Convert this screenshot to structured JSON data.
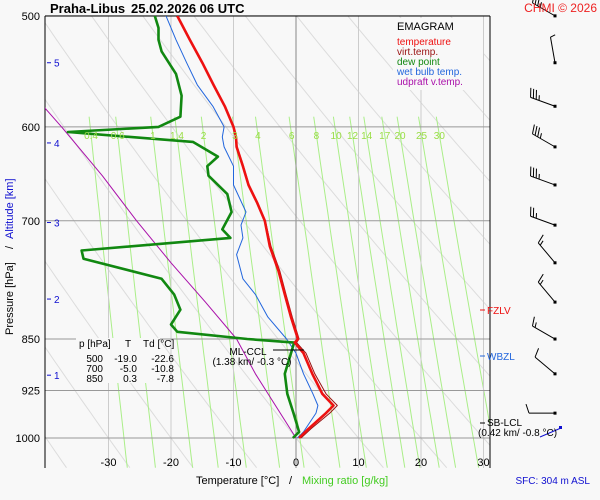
{
  "header": {
    "station": "Praha-Libus",
    "datetime": "25.02.2026 06 UTC",
    "copyright": "CHMI © 2026"
  },
  "legend": {
    "title": "EMAGRAM",
    "items": [
      {
        "label": "temperature",
        "color": "#ee1111"
      },
      {
        "label": "virt.temp.",
        "color": "#991111"
      },
      {
        "label": "dew point",
        "color": "#118811"
      },
      {
        "label": "wet bulb temp.",
        "color": "#2266dd"
      },
      {
        "label": "udpraft v.temp.",
        "color": "#aa11aa"
      }
    ]
  },
  "table": {
    "headers": [
      "p [hPa]",
      "T",
      "Td [°C]"
    ],
    "rows": [
      [
        "500",
        "-19.0",
        "-22.6"
      ],
      [
        "700",
        "-5.0",
        "-10.8"
      ],
      [
        "850",
        "0.3",
        "-7.8"
      ]
    ]
  },
  "annotations": {
    "ml_ccl": "ML-CCL",
    "ml_ccl_detail": "(1.38 km/ -0.3 °C)",
    "sb_lcl": "SB-LCL",
    "sb_lcl_detail": "(0.42 km/ -0.8 °C)",
    "fzlv": "FZLV",
    "wbzl": "WBZL"
  },
  "footer": {
    "sfc": "SFC: 304 m ASL"
  },
  "chart_data": {
    "type": "line",
    "title": "Praha-Libus 25.02.2026 06 UTC",
    "xlabel": "Temperature [°C]",
    "xlabel2": "Mixing ratio [g/kg]",
    "ylabel": "Pressure [hPa]",
    "ylabel2": "Altitude [km]",
    "xlim": [
      -38,
      48
    ],
    "ylim": [
      1000,
      500
    ],
    "x_ticks": [
      -30,
      -20,
      -10,
      0,
      10,
      20,
      30
    ],
    "y_ticks": [
      500,
      600,
      700,
      850,
      925,
      1000
    ],
    "altitude_ticks": [
      {
        "km": 1,
        "p": 902
      },
      {
        "km": 2,
        "p": 796
      },
      {
        "km": 3,
        "p": 702
      },
      {
        "km": 4,
        "p": 616
      },
      {
        "km": 5,
        "p": 540
      }
    ],
    "mixing_ratio_labels": [
      "0.4",
      "0.6",
      "1",
      "1.4",
      "2",
      "3",
      "4",
      "6",
      "8",
      "10",
      "12",
      "14",
      "17",
      "20",
      "25",
      "30"
    ],
    "mixing_ratio_values": [
      0.4,
      0.6,
      1,
      1.4,
      2,
      3,
      4,
      6,
      8,
      10,
      12,
      14,
      17,
      20,
      25,
      30
    ],
    "series": [
      {
        "name": "temperature",
        "color": "#ee1111",
        "points": [
          [
            1000,
            0.5
          ],
          [
            985,
            2.0
          ],
          [
            960,
            4.8
          ],
          [
            948,
            6.0
          ],
          [
            930,
            4.2
          ],
          [
            900,
            2.6
          ],
          [
            870,
            1.2
          ],
          [
            855,
            -0.2
          ],
          [
            850,
            0.3
          ],
          [
            820,
            -0.8
          ],
          [
            790,
            -1.8
          ],
          [
            760,
            -2.8
          ],
          [
            730,
            -4.2
          ],
          [
            700,
            -5.0
          ],
          [
            680,
            -6.2
          ],
          [
            660,
            -7.6
          ],
          [
            640,
            -8.5
          ],
          [
            620,
            -9.5
          ],
          [
            610,
            -9.6
          ],
          [
            600,
            -10.0
          ],
          [
            580,
            -11.4
          ],
          [
            560,
            -13.2
          ],
          [
            540,
            -15.0
          ],
          [
            520,
            -17.0
          ],
          [
            500,
            -19.0
          ]
        ]
      },
      {
        "name": "virt.temp.",
        "color": "#991111",
        "points": [
          [
            1000,
            0.8
          ],
          [
            985,
            2.4
          ],
          [
            960,
            5.4
          ],
          [
            948,
            6.6
          ],
          [
            930,
            4.8
          ],
          [
            900,
            3.0
          ],
          [
            870,
            1.6
          ],
          [
            855,
            0.1
          ],
          [
            850,
            0.5
          ],
          [
            820,
            -0.6
          ],
          [
            790,
            -1.6
          ],
          [
            760,
            -2.6
          ],
          [
            730,
            -4.0
          ],
          [
            700,
            -4.9
          ],
          [
            680,
            -6.1
          ],
          [
            660,
            -7.5
          ],
          [
            640,
            -8.4
          ],
          [
            620,
            -9.4
          ],
          [
            600,
            -9.9
          ],
          [
            580,
            -11.3
          ],
          [
            560,
            -13.1
          ],
          [
            540,
            -14.9
          ],
          [
            520,
            -16.9
          ],
          [
            500,
            -18.9
          ]
        ]
      },
      {
        "name": "dew point",
        "color": "#118811",
        "points": [
          [
            1000,
            -0.5
          ],
          [
            990,
            0.5
          ],
          [
            960,
            -0.4
          ],
          [
            930,
            -1.4
          ],
          [
            900,
            -1.8
          ],
          [
            870,
            -0.8
          ],
          [
            855,
            -0.3
          ],
          [
            850,
            -7.8
          ],
          [
            840,
            -19.0
          ],
          [
            830,
            -20.0
          ],
          [
            810,
            -18.5
          ],
          [
            790,
            -19.5
          ],
          [
            770,
            -21.5
          ],
          [
            745,
            -34.0
          ],
          [
            735,
            -34.3
          ],
          [
            720,
            -10.5
          ],
          [
            710,
            -11.8
          ],
          [
            690,
            -10.3
          ],
          [
            670,
            -11.0
          ],
          [
            650,
            -14.0
          ],
          [
            640,
            -14.2
          ],
          [
            630,
            -12.5
          ],
          [
            615,
            -16.5
          ],
          [
            605,
            -36.5
          ],
          [
            600,
            -22.0
          ],
          [
            590,
            -18.5
          ],
          [
            570,
            -18.3
          ],
          [
            550,
            -19.2
          ],
          [
            530,
            -21.5
          ],
          [
            520,
            -22.0
          ],
          [
            510,
            -22.0
          ],
          [
            500,
            -22.6
          ]
        ]
      },
      {
        "name": "wet bulb temp.",
        "color": "#2266dd",
        "points": [
          [
            1000,
            0.2
          ],
          [
            990,
            1.2
          ],
          [
            960,
            3.2
          ],
          [
            948,
            3.5
          ],
          [
            930,
            2.7
          ],
          [
            900,
            1.2
          ],
          [
            870,
            0.0
          ],
          [
            850,
            -1.5
          ],
          [
            820,
            -4.5
          ],
          [
            790,
            -6.5
          ],
          [
            770,
            -8.5
          ],
          [
            740,
            -9.5
          ],
          [
            720,
            -8.5
          ],
          [
            705,
            -8.8
          ],
          [
            690,
            -8.0
          ],
          [
            660,
            -10.0
          ],
          [
            640,
            -10.0
          ],
          [
            620,
            -11.5
          ],
          [
            610,
            -11.8
          ],
          [
            600,
            -11.5
          ],
          [
            580,
            -13.3
          ],
          [
            560,
            -15.8
          ],
          [
            540,
            -17.5
          ],
          [
            520,
            -19.2
          ],
          [
            500,
            -20.8
          ]
        ]
      },
      {
        "name": "udpraft v.temp.",
        "color": "#aa11aa",
        "points": [
          [
            1000,
            0.0
          ],
          [
            900,
            -6.5
          ],
          [
            850,
            -9.5
          ],
          [
            800,
            -14.5
          ],
          [
            750,
            -20.0
          ],
          [
            700,
            -25.5
          ],
          [
            650,
            -31.0
          ],
          [
            600,
            -37.5
          ],
          [
            550,
            -45.0
          ],
          [
            500,
            -52.0
          ]
        ]
      }
    ],
    "wind_barbs": [
      {
        "p": 500,
        "speed_kt": 35,
        "dir_deg": 300
      },
      {
        "p": 540,
        "speed_kt": 5,
        "dir_deg": 350
      },
      {
        "p": 580,
        "speed_kt": 35,
        "dir_deg": 290
      },
      {
        "p": 620,
        "speed_kt": 35,
        "dir_deg": 300
      },
      {
        "p": 660,
        "speed_kt": 35,
        "dir_deg": 290
      },
      {
        "p": 705,
        "speed_kt": 25,
        "dir_deg": 290
      },
      {
        "p": 750,
        "speed_kt": 15,
        "dir_deg": 320
      },
      {
        "p": 800,
        "speed_kt": 15,
        "dir_deg": 320
      },
      {
        "p": 850,
        "speed_kt": 15,
        "dir_deg": 300
      },
      {
        "p": 900,
        "speed_kt": 10,
        "dir_deg": 310
      },
      {
        "p": 960,
        "speed_kt": 10,
        "dir_deg": 270
      }
    ],
    "levels": {
      "fzlv_p": 820,
      "wbzl_p": 875,
      "ml_ccl_p": 852,
      "sb_lcl_p": 975
    },
    "grid": true,
    "legend_position": "top-right"
  }
}
